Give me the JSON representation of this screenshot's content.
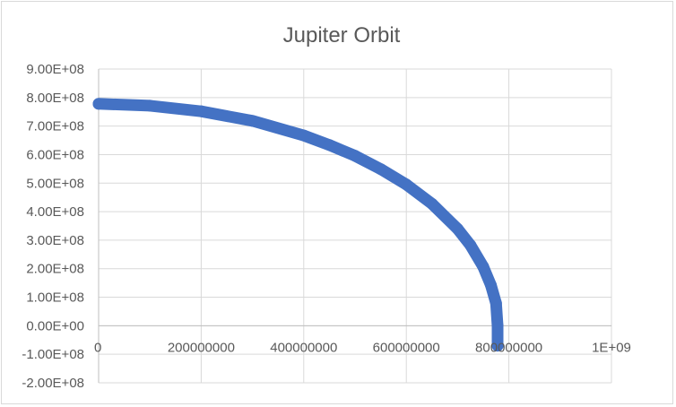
{
  "chart_data": {
    "type": "scatter",
    "title": "Jupiter Orbit",
    "xlabel": "",
    "ylabel": "",
    "xlim": [
      0,
      1000000000
    ],
    "ylim": [
      -200000000,
      900000000
    ],
    "x_tick_values": [
      0,
      200000000,
      400000000,
      600000000,
      800000000,
      1000000000
    ],
    "x_tick_labels": [
      "0",
      "200000000",
      "400000000",
      "600000000",
      "800000000",
      "1E+09"
    ],
    "y_tick_values": [
      900000000,
      800000000,
      700000000,
      600000000,
      500000000,
      400000000,
      300000000,
      200000000,
      100000000,
      0,
      -100000000,
      -200000000
    ],
    "y_tick_labels": [
      "9.00E+08",
      "8.00E+08",
      "7.00E+08",
      "6.00E+08",
      "5.00E+08",
      "4.00E+08",
      "3.00E+08",
      "2.00E+08",
      "1.00E+08",
      "0.00E+00",
      "-1.00E+08",
      "-2.00E+08"
    ],
    "grid": true,
    "legend": "none",
    "series": [
      {
        "color": "#4472c4",
        "x": [
          0,
          100000000,
          200000000,
          300000000,
          400000000,
          450000000,
          500000000,
          550000000,
          600000000,
          650000000,
          700000000,
          725000000,
          750000000,
          765000000,
          775000000,
          778000000,
          778000000
        ],
        "y": [
          778000000,
          771500000,
          751800000,
          718200000,
          667200000,
          633500000,
          595900000,
          549200000,
          495300000,
          427500000,
          339600000,
          282400000,
          206700000,
          141700000,
          78800000,
          0,
          -70000000
        ]
      }
    ]
  }
}
